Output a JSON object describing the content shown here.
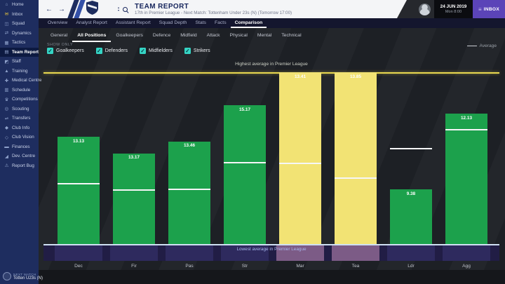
{
  "sidebar": {
    "items": [
      {
        "label": "Home",
        "icon": "home-icon",
        "selected": false
      },
      {
        "label": "Inbox",
        "icon": "inbox-icon",
        "selected": false
      },
      {
        "label": "Squad",
        "icon": "squad-icon",
        "selected": false
      },
      {
        "label": "Dynamics",
        "icon": "dynamics-icon",
        "selected": false
      },
      {
        "label": "Tactics",
        "icon": "tactics-icon",
        "selected": false
      },
      {
        "label": "Team Report",
        "icon": "team-report-icon",
        "selected": true
      },
      {
        "label": "Staff",
        "icon": "staff-icon",
        "selected": false
      },
      {
        "label": "Training",
        "icon": "training-icon",
        "selected": false
      },
      {
        "label": "Medical Centre",
        "icon": "medical-centre-icon",
        "selected": false
      },
      {
        "label": "Schedule",
        "icon": "schedule-icon",
        "selected": false
      },
      {
        "label": "Competitions",
        "icon": "competitions-icon",
        "selected": false
      },
      {
        "label": "Scouting",
        "icon": "scouting-icon",
        "selected": false
      },
      {
        "label": "Transfers",
        "icon": "transfers-icon",
        "selected": false
      },
      {
        "label": "Club Info",
        "icon": "club-info-icon",
        "selected": false
      },
      {
        "label": "Club Vision",
        "icon": "club-vision-icon",
        "selected": false
      },
      {
        "label": "Finances",
        "icon": "finances-icon",
        "selected": false
      },
      {
        "label": "Dev. Centre",
        "icon": "dev-centre-icon",
        "selected": false
      },
      {
        "label": "Report Bug",
        "icon": "report-bug-icon",
        "selected": false
      }
    ],
    "next_match": {
      "heading": "NEXT MATCH",
      "opponent": "Totten U23s (N)"
    }
  },
  "header": {
    "title": "TEAM REPORT",
    "subtitle": "17th in Premier League - Next Match: Tottenham Under 23s (N) (Tomorrow 17:00)",
    "back_icon": "←",
    "forward_icon": "→",
    "date_line1": "24 JUN 2019",
    "date_line2": "Mon 8:00",
    "inbox_label": "INBOX"
  },
  "tabs": {
    "items": [
      "Overview",
      "Analyst Report",
      "Assistant Report",
      "Squad Depth",
      "Stats",
      "Facts",
      "Comparison"
    ],
    "selected": "Comparison"
  },
  "subtabs": {
    "items": [
      "General",
      "All Positions",
      "Goalkeepers",
      "Defence",
      "Midfield",
      "Attack",
      "Physical",
      "Mental",
      "Technical"
    ],
    "selected": "All Positions"
  },
  "filters": {
    "show_only_label": "SHOW ONLY",
    "checkboxes": [
      {
        "label": "Goalkeepers",
        "checked": true
      },
      {
        "label": "Defenders",
        "checked": true
      },
      {
        "label": "Midfielders",
        "checked": true
      },
      {
        "label": "Strikers",
        "checked": true
      }
    ]
  },
  "chart_data": {
    "type": "bar",
    "title_top": "Highest average in Premier League",
    "title_bottom": "Lowest average in Premier League",
    "legend_label": "Average",
    "categories": [
      "Dec",
      "Fir",
      "Pas",
      "Str",
      "Mar",
      "Tea",
      "Ldr",
      "Agg"
    ],
    "values": [
      13.13,
      13.17,
      13.46,
      15.17,
      13.41,
      13.85,
      9.38,
      12.13
    ],
    "bars": [
      {
        "category": "Dec",
        "value_label": "13.13",
        "top_frac": 0.376,
        "avg_frac": 0.645,
        "highest_in_league": false
      },
      {
        "category": "Fir",
        "value_label": "13.17",
        "top_frac": 0.473,
        "avg_frac": 0.682,
        "highest_in_league": false
      },
      {
        "category": "Pas",
        "value_label": "13.46",
        "top_frac": 0.404,
        "avg_frac": 0.678,
        "highest_in_league": false
      },
      {
        "category": "Str",
        "value_label": "15.17",
        "top_frac": 0.192,
        "avg_frac": 0.522,
        "highest_in_league": false
      },
      {
        "category": "Mar",
        "value_label": "13.41",
        "top_frac": 0.0,
        "avg_frac": 0.527,
        "highest_in_league": true
      },
      {
        "category": "Tea",
        "value_label": "13.85",
        "top_frac": 0.0,
        "avg_frac": 0.612,
        "highest_in_league": true
      },
      {
        "category": "Ldr",
        "value_label": "9.38",
        "top_frac": 0.682,
        "avg_frac": 0.441,
        "highest_in_league": false
      },
      {
        "category": "Agg",
        "value_label": "12.13",
        "top_frac": 0.241,
        "avg_frac": 0.331,
        "highest_in_league": false
      }
    ],
    "axis_note_scale": "bars span between league lowest and highest average lines"
  },
  "colors": {
    "bar_green": "#1ca14c",
    "bar_yellow": "#f2e374",
    "highest_line_yellow": "#e9d84f",
    "average_line_white": "#f5f6f7",
    "checkbox_teal": "#35d4c4",
    "inbox_purple": "#5b44b8",
    "band_column_purple": "#2e2a5e",
    "band_highlight_mauve": "#7c5b86",
    "sidebar_navy": "#1e2d5f"
  }
}
